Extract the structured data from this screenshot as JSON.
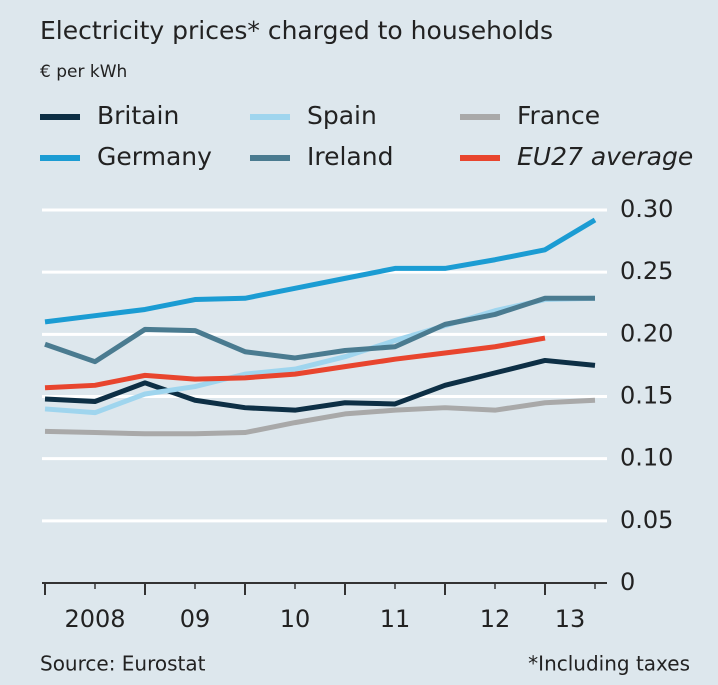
{
  "chart_data": {
    "type": "line",
    "title": "Electricity prices* charged to households",
    "subtitle": "€ per kWh",
    "source": "Source: Eurostat",
    "note": "*Including taxes",
    "x": [
      2008,
      2008.5,
      2009,
      2009.5,
      2010,
      2010.5,
      2011,
      2011.5,
      2012,
      2012.5,
      2013,
      2013.5
    ],
    "xlim": [
      2008,
      2013.5
    ],
    "xticks": [
      {
        "value": 2008,
        "label": "2008"
      },
      {
        "value": 2009,
        "label": "09"
      },
      {
        "value": 2010,
        "label": "10"
      },
      {
        "value": 2011,
        "label": "11"
      },
      {
        "value": 2012,
        "label": "12"
      },
      {
        "value": 2013,
        "label": "13"
      }
    ],
    "ylim": [
      0,
      0.3
    ],
    "yticks": [
      0,
      0.05,
      {
        "value": 0.1,
        "label": "0.10"
      },
      0.15,
      {
        "value": 0.2,
        "label": "0.20"
      },
      0.25,
      {
        "value": 0.3,
        "label": "0.30"
      }
    ],
    "grid": true,
    "series": [
      {
        "name": "Britain",
        "color": "#0d2f45",
        "values": [
          0.148,
          0.146,
          0.161,
          0.147,
          0.141,
          0.139,
          0.145,
          0.144,
          0.159,
          0.169,
          0.179,
          0.175
        ]
      },
      {
        "name": "Spain",
        "color": "#9fd5ee",
        "values": [
          0.14,
          0.137,
          0.152,
          0.158,
          0.168,
          0.172,
          0.182,
          0.195,
          0.207,
          0.219,
          0.228,
          0.229
        ]
      },
      {
        "name": "France",
        "color": "#a9a9a9",
        "values": [
          0.122,
          0.121,
          0.12,
          0.12,
          0.121,
          0.129,
          0.136,
          0.139,
          0.141,
          0.139,
          0.145,
          0.147
        ]
      },
      {
        "name": "Germany",
        "color": "#1b9cd3",
        "values": [
          0.21,
          0.215,
          0.22,
          0.228,
          0.229,
          0.237,
          0.245,
          0.253,
          0.253,
          0.26,
          0.268,
          0.292
        ]
      },
      {
        "name": "Ireland",
        "color": "#4a7b90",
        "values": [
          0.192,
          0.178,
          0.204,
          0.203,
          0.186,
          0.181,
          0.187,
          0.19,
          0.208,
          0.216,
          0.229,
          0.229
        ]
      },
      {
        "name": "EU27 average",
        "color": "#e8452e",
        "values": [
          0.157,
          0.159,
          0.167,
          0.164,
          0.165,
          0.168,
          0.174,
          0.18,
          0.185,
          0.19,
          0.197,
          null
        ]
      }
    ]
  }
}
